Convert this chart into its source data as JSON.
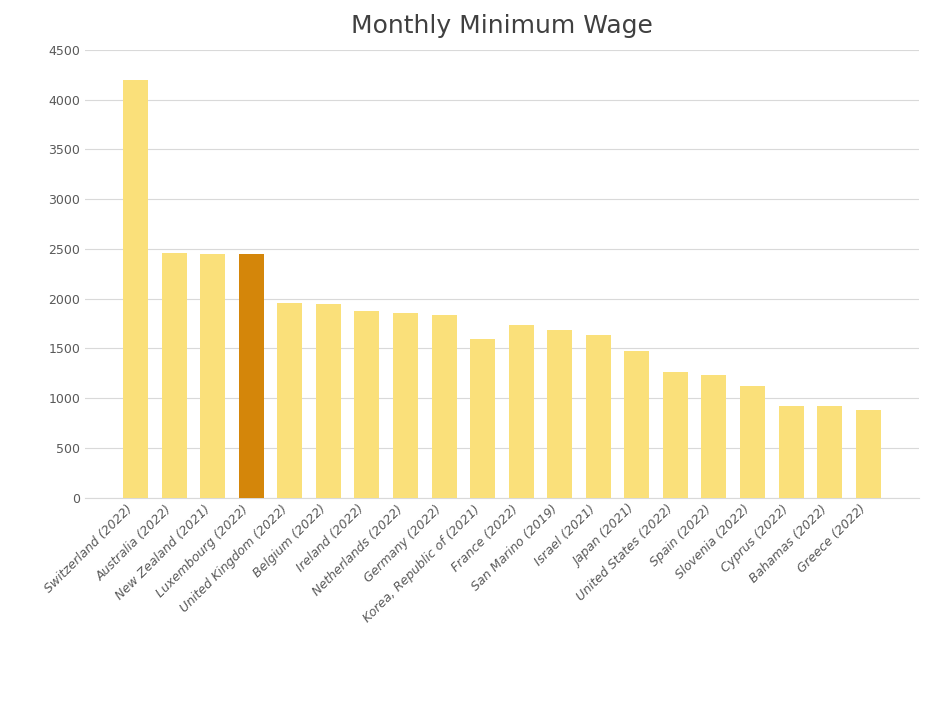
{
  "title": "Monthly Minimum Wage",
  "categories": [
    "Switzerland (2022)",
    "Australia (2022)",
    "New Zealand (2021)",
    "Luxembourg (2022)",
    "United Kingdom (2022)",
    "Belgium (2022)",
    "Ireland (2022)",
    "Netherlands (2022)",
    "Germany (2022)",
    "Korea, Republic of (2021)",
    "France (2022)",
    "San Marino (2019)",
    "Israel (2021)",
    "Japan (2021)",
    "United States (2022)",
    "Spain (2022)",
    "Slovenia (2022)",
    "Cyprus (2022)",
    "Bahamas (2022)",
    "Greece (2022)"
  ],
  "values": [
    4200,
    2460,
    2450,
    2450,
    1960,
    1950,
    1880,
    1860,
    1840,
    1590,
    1730,
    1680,
    1630,
    1470,
    1260,
    1230,
    1120,
    920,
    925,
    880
  ],
  "bar_colors": [
    "#FAE07A",
    "#FAE07A",
    "#FAE07A",
    "#D4860A",
    "#FAE07A",
    "#FAE07A",
    "#FAE07A",
    "#FAE07A",
    "#FAE07A",
    "#FAE07A",
    "#FAE07A",
    "#FAE07A",
    "#FAE07A",
    "#FAE07A",
    "#FAE07A",
    "#FAE07A",
    "#FAE07A",
    "#FAE07A",
    "#FAE07A",
    "#FAE07A"
  ],
  "ylim": [
    0,
    4500
  ],
  "yticks": [
    0,
    500,
    1000,
    1500,
    2000,
    2500,
    3000,
    3500,
    4000,
    4500
  ],
  "background_color": "#FFFFFF",
  "grid_color": "#D9D9D9",
  "title_fontsize": 18,
  "tick_fontsize": 9,
  "bar_width": 0.65
}
